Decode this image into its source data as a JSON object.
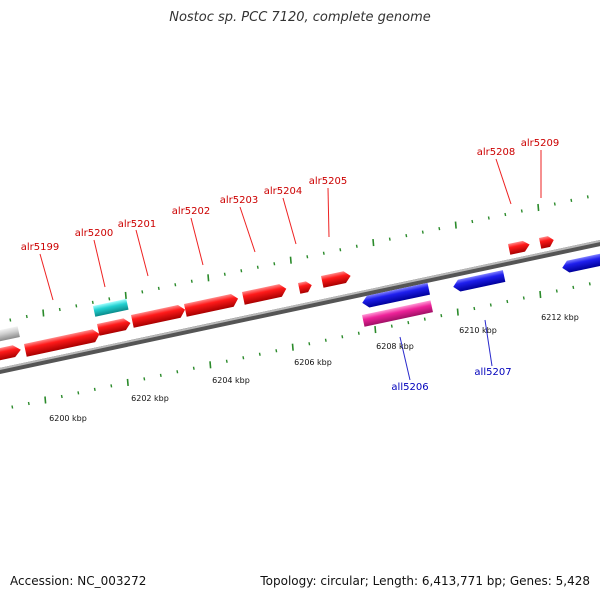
{
  "title": "Nostoc sp. PCC 7120, complete genome",
  "footer": {
    "accession": "Accession: NC_003272",
    "stats": "Topology: circular; Length: 6,413,771 bp; Genes: 5,428"
  },
  "colors": {
    "forward_gene": "#ee0000",
    "reverse_gene": "#1515dd",
    "rna_gene": "#20c8c8",
    "pseudo_gene": "#ee2299",
    "other_gene": "#c8c8c8",
    "tick": "#2a8a2a",
    "forward_label": "#cc0000",
    "reverse_label": "#0000bb"
  },
  "kbp_labels": [
    "6200 kbp",
    "6202 kbp",
    "6204 kbp",
    "6206 kbp",
    "6208 kbp",
    "6210 kbp",
    "6212 kbp"
  ],
  "gene_labels": [
    {
      "text": "alr5199",
      "strand": "forward"
    },
    {
      "text": "alr5200",
      "strand": "forward"
    },
    {
      "text": "alr5201",
      "strand": "forward"
    },
    {
      "text": "alr5202",
      "strand": "forward"
    },
    {
      "text": "alr5203",
      "strand": "forward"
    },
    {
      "text": "alr5204",
      "strand": "forward"
    },
    {
      "text": "alr5205",
      "strand": "forward"
    },
    {
      "text": "alr5208",
      "strand": "forward"
    },
    {
      "text": "alr5209",
      "strand": "forward"
    },
    {
      "text": "all5206",
      "strand": "reverse"
    },
    {
      "text": "all5207",
      "strand": "reverse"
    }
  ]
}
